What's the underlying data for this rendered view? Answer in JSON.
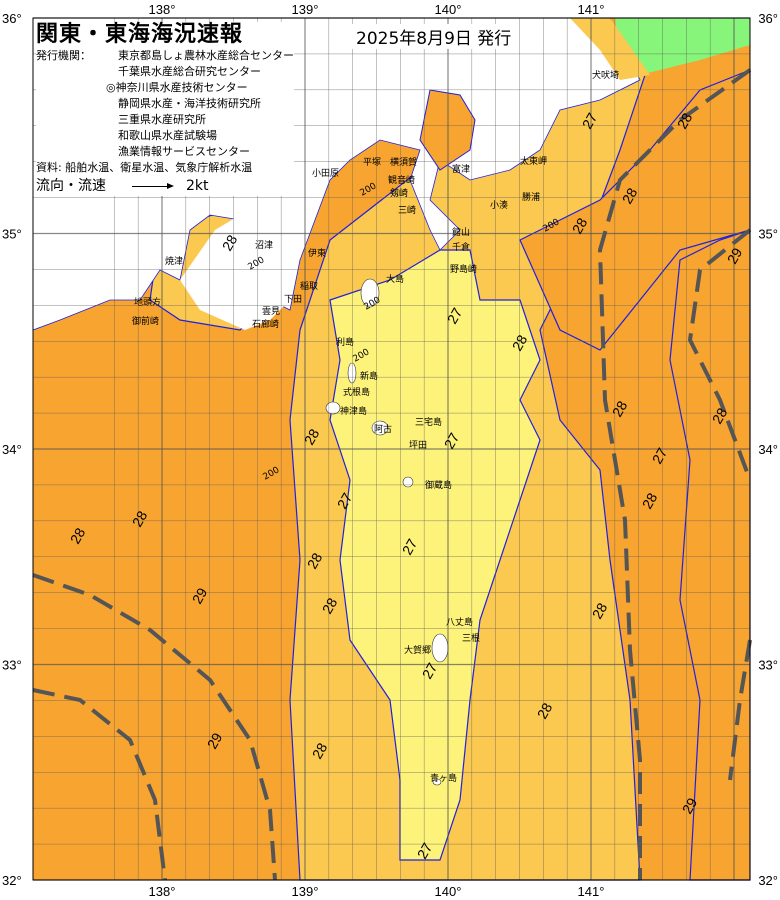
{
  "header": {
    "title": "関東・東海海況速報",
    "date": "2025年8月9日 発行",
    "issuer_label": "発行機関：",
    "issuers": [
      "東京都島しょ農林水産総合センター",
      "千葉県水産総合研究センター",
      "◎神奈川県水産技術センター",
      "静岡県水産・海洋技術研究所",
      "三重県水産研究所",
      "和歌山県水産試験場",
      "漁業情報サービスセンター"
    ],
    "source": "資料: 船舶水温、衛星水温、気象庁解析水温",
    "flow_label": "流向・流速",
    "flow_scale": "2kt"
  },
  "axes": {
    "lon_ticks": [
      "138°",
      "139°",
      "140°",
      "141°"
    ],
    "lat_ticks": [
      "36°",
      "35°",
      "34°",
      "33°",
      "32°"
    ]
  },
  "colors": {
    "warm_28": "#f7a431",
    "mid_27": "#fbc94f",
    "cool_26": "#fdf27a",
    "land": "#ffffff",
    "cold_north": "#86f57a",
    "isotherm": "#2020e0",
    "current_axis": "#555555"
  },
  "places": [
    "犬吠埼",
    "太東岬",
    "勝浦",
    "小湊",
    "富津",
    "横須賀",
    "平塚",
    "小田原",
    "観音崎",
    "剱崎",
    "三崎",
    "館山",
    "千倉",
    "野島崎",
    "沼津",
    "焼津",
    "伊東",
    "稲取",
    "下田",
    "雲見",
    "石廊崎",
    "地頭方",
    "御前崎",
    "大島",
    "利島",
    "新島",
    "式根島",
    "神津島",
    "三宅島",
    "御蔵島",
    "坪田",
    "阿古",
    "八丈島",
    "三根",
    "大賀郷",
    "青ヶ島"
  ],
  "contour_labels": [
    "27",
    "28",
    "28",
    "28",
    "29",
    "28",
    "28",
    "28",
    "28",
    "28",
    "27",
    "27",
    "28",
    "28",
    "27",
    "27",
    "27",
    "28",
    "28",
    "29",
    "29",
    "28",
    "28",
    "27",
    "28",
    "28",
    "29",
    "27"
  ],
  "depth_labels": [
    "200",
    "200",
    "200",
    "200",
    "200",
    "200"
  ]
}
